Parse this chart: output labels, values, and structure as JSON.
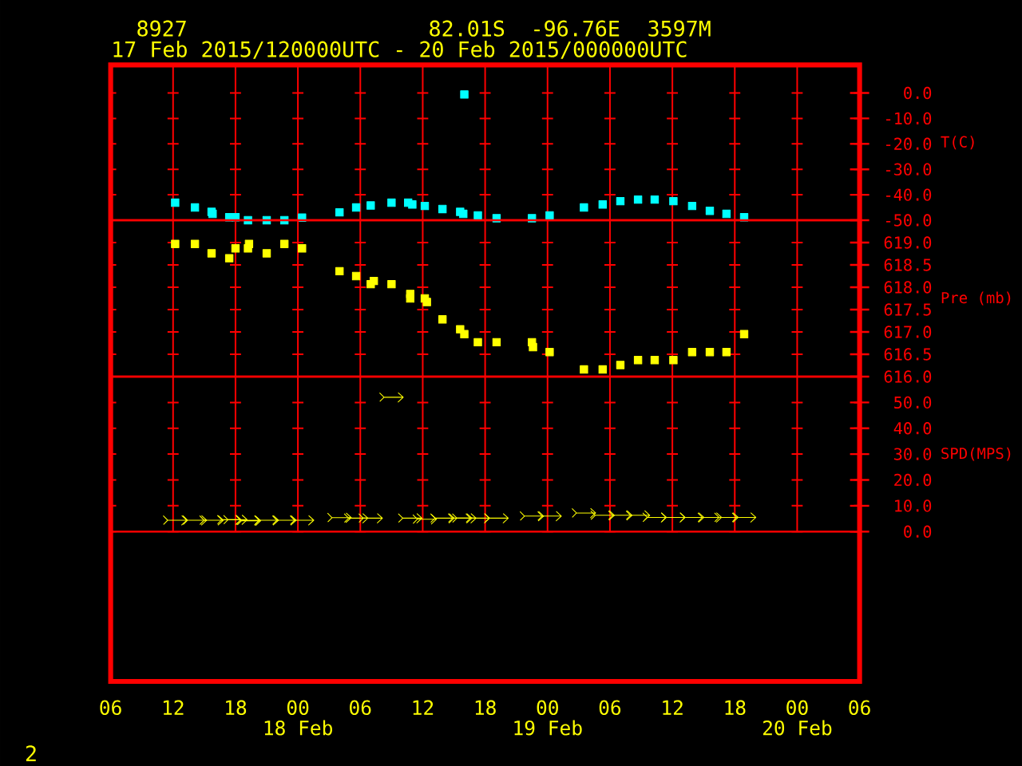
{
  "chart_data": [
    {
      "type": "scatter",
      "title": "8927",
      "subtitle": "17 Feb 2015/120000UTC - 20 Feb 2015/000000UTC",
      "annotations": [
        "82.01S",
        "-96.76E",
        "3597M",
        "2"
      ],
      "ylabel": "T(C)",
      "color": "#00ffff",
      "marker": "square",
      "grid": true,
      "tick_labels": "y",
      "xlim": [
        "2015-02-17T06:00",
        "2015-02-20T06:00"
      ],
      "xticks": [
        {
          "value": "2015-02-17T06:00",
          "label": null
        },
        {
          "value": "2015-02-17T12:00",
          "label": null
        },
        {
          "value": "2015-02-17T18:00",
          "label": null
        },
        {
          "value": "2015-02-18T00:00",
          "label": null
        },
        {
          "value": "2015-02-18T06:00",
          "label": null
        },
        {
          "value": "2015-02-18T12:00",
          "label": null
        },
        {
          "value": "2015-02-18T18:00",
          "label": null
        },
        {
          "value": "2015-02-19T00:00",
          "label": null
        },
        {
          "value": "2015-02-19T06:00",
          "label": null
        },
        {
          "value": "2015-02-19T12:00",
          "label": null
        },
        {
          "value": "2015-02-19T18:00",
          "label": null
        },
        {
          "value": "2015-02-20T00:00",
          "label": null
        },
        {
          "value": "2015-02-20T06:00",
          "label": null
        }
      ],
      "ylim": [
        -50,
        11
      ],
      "yticks": [
        {
          "value": -50,
          "label": "-50.0"
        },
        {
          "value": -40,
          "label": "-40.0"
        },
        {
          "value": -30,
          "label": "-30.0"
        },
        {
          "value": -20,
          "label": "-20.0"
        },
        {
          "value": -10,
          "label": "-10.0"
        },
        {
          "value": 0,
          "label": "0.0"
        }
      ],
      "x": [
        "2015-02-17T12:12",
        "2015-02-17T14:06",
        "2015-02-17T15:42",
        "2015-02-17T15:48",
        "2015-02-17T17:24",
        "2015-02-17T18:00",
        "2015-02-17T19:12",
        "2015-02-17T21:00",
        "2015-02-17T22:42",
        "2015-02-18T00:24",
        "2015-02-18T04:00",
        "2015-02-18T05:36",
        "2015-02-18T07:00",
        "2015-02-18T09:00",
        "2015-02-18T10:36",
        "2015-02-18T11:00",
        "2015-02-18T12:12",
        "2015-02-18T13:54",
        "2015-02-18T15:36",
        "2015-02-18T15:54",
        "2015-02-18T16:00",
        "2015-02-18T17:18",
        "2015-02-18T19:06",
        "2015-02-18T22:30",
        "2015-02-19T00:12",
        "2015-02-19T03:30",
        "2015-02-19T05:18",
        "2015-02-19T07:00",
        "2015-02-19T08:42",
        "2015-02-19T10:18",
        "2015-02-19T12:06",
        "2015-02-19T13:54",
        "2015-02-19T15:36",
        "2015-02-19T17:12",
        "2015-02-19T18:54"
      ],
      "values": [
        -43.1,
        -45.0,
        -46.7,
        -47.5,
        -48.8,
        -48.8,
        -50.0,
        -50.0,
        -50.0,
        -49.0,
        -46.9,
        -45.0,
        -44.2,
        -43.1,
        -43.1,
        -43.8,
        -44.4,
        -45.6,
        -46.7,
        -47.5,
        -0.6,
        -48.1,
        -49.2,
        -49.2,
        -48.1,
        -45.0,
        -43.8,
        -42.5,
        -41.9,
        -41.9,
        -42.5,
        -44.4,
        -46.3,
        -47.5,
        -48.8
      ]
    },
    {
      "type": "scatter",
      "ylabel": "Pre (mb)",
      "color": "#ffff00",
      "marker": "square",
      "grid": true,
      "tick_labels": "y",
      "xlim": [
        "2015-02-17T06:00",
        "2015-02-20T06:00"
      ],
      "xticks": [
        {
          "value": "2015-02-17T06:00",
          "label": null
        },
        {
          "value": "2015-02-17T12:00",
          "label": null
        },
        {
          "value": "2015-02-17T18:00",
          "label": null
        },
        {
          "value": "2015-02-18T00:00",
          "label": null
        },
        {
          "value": "2015-02-18T06:00",
          "label": null
        },
        {
          "value": "2015-02-18T12:00",
          "label": null
        },
        {
          "value": "2015-02-18T18:00",
          "label": null
        },
        {
          "value": "2015-02-19T00:00",
          "label": null
        },
        {
          "value": "2015-02-19T06:00",
          "label": null
        },
        {
          "value": "2015-02-19T12:00",
          "label": null
        },
        {
          "value": "2015-02-19T18:00",
          "label": null
        },
        {
          "value": "2015-02-20T00:00",
          "label": null
        },
        {
          "value": "2015-02-20T06:00",
          "label": null
        }
      ],
      "ylim": [
        616,
        619.5
      ],
      "yticks": [
        {
          "value": 616,
          "label": "616.0"
        },
        {
          "value": 616.5,
          "label": "616.5"
        },
        {
          "value": 617,
          "label": "617.0"
        },
        {
          "value": 617.5,
          "label": "617.5"
        },
        {
          "value": 618,
          "label": "618.0"
        },
        {
          "value": 618.5,
          "label": "618.5"
        },
        {
          "value": 619,
          "label": "619.0"
        }
      ],
      "x": [
        "2015-02-17T12:12",
        "2015-02-17T14:06",
        "2015-02-17T15:42",
        "2015-02-17T17:24",
        "2015-02-17T18:00",
        "2015-02-17T19:12",
        "2015-02-17T19:18",
        "2015-02-17T21:00",
        "2015-02-17T22:42",
        "2015-02-18T00:24",
        "2015-02-18T04:00",
        "2015-02-18T05:36",
        "2015-02-18T07:00",
        "2015-02-18T07:18",
        "2015-02-18T09:00",
        "2015-02-18T10:48",
        "2015-02-18T10:48",
        "2015-02-18T12:12",
        "2015-02-18T12:24",
        "2015-02-18T13:54",
        "2015-02-18T15:36",
        "2015-02-18T16:00",
        "2015-02-18T17:18",
        "2015-02-18T19:06",
        "2015-02-18T22:30",
        "2015-02-18T22:36",
        "2015-02-19T00:12",
        "2015-02-19T03:30",
        "2015-02-19T05:18",
        "2015-02-19T07:00",
        "2015-02-19T08:42",
        "2015-02-19T10:18",
        "2015-02-19T12:06",
        "2015-02-19T13:54",
        "2015-02-19T15:36",
        "2015-02-19T17:12",
        "2015-02-19T18:54"
      ],
      "values": [
        618.97,
        618.97,
        618.76,
        618.65,
        618.87,
        618.87,
        618.97,
        618.76,
        618.97,
        618.87,
        618.36,
        618.25,
        618.07,
        618.14,
        618.07,
        617.85,
        617.75,
        617.75,
        617.67,
        617.28,
        617.06,
        616.95,
        616.77,
        616.77,
        616.77,
        616.66,
        616.55,
        616.16,
        616.16,
        616.26,
        616.37,
        616.37,
        616.37,
        616.55,
        616.55,
        616.55,
        616.95
      ]
    },
    {
      "type": "scatter",
      "ylabel": "SPD(MPS)",
      "color": "#ffff00",
      "grid": true,
      "xlim": [
        "2015-02-17T06:00",
        "2015-02-20T06:00"
      ],
      "xticks": [
        {
          "value": "2015-02-17T06:00",
          "label": "06"
        },
        {
          "value": "2015-02-17T12:00",
          "label": "12"
        },
        {
          "value": "2015-02-17T18:00",
          "label": "18"
        },
        {
          "value": "2015-02-18T00:00",
          "label": "00"
        },
        {
          "value": "2015-02-18T06:00",
          "label": "06"
        },
        {
          "value": "2015-02-18T12:00",
          "label": "12"
        },
        {
          "value": "2015-02-18T18:00",
          "label": "18"
        },
        {
          "value": "2015-02-19T00:00",
          "label": "00"
        },
        {
          "value": "2015-02-19T06:00",
          "label": "06"
        },
        {
          "value": "2015-02-19T12:00",
          "label": "12"
        },
        {
          "value": "2015-02-19T18:00",
          "label": "18"
        },
        {
          "value": "2015-02-20T00:00",
          "label": "00"
        },
        {
          "value": "2015-02-20T06:00",
          "label": "06"
        }
      ],
      "x2lim": [
        "2015-02-17T06:00",
        "2015-02-20T06:00"
      ],
      "x2ticks": [
        {
          "value": "2015-02-18T00:00",
          "label": "18 Feb"
        },
        {
          "value": "2015-02-19T00:00",
          "label": "19 Feb"
        },
        {
          "value": "2015-02-20T00:00",
          "label": "20 Feb"
        }
      ],
      "ylim": [
        -58,
        60
      ],
      "yticks": [
        {
          "value": 0,
          "label": "0.0"
        },
        {
          "value": 10,
          "label": "10.0"
        },
        {
          "value": 20,
          "label": "20.0"
        },
        {
          "value": 30,
          "label": "30.0"
        },
        {
          "value": 40,
          "label": "40.0"
        },
        {
          "value": 50,
          "label": "50.0"
        }
      ],
      "ref_lines": [
        {
          "axis": "y",
          "value": 0,
          "color": "#ff0000"
        }
      ],
      "x": [
        "2015-02-17T12:12",
        "2015-02-17T14:06",
        "2015-02-17T15:42",
        "2015-02-17T17:24",
        "2015-02-17T18:00",
        "2015-02-17T19:12",
        "2015-02-17T19:18",
        "2015-02-17T21:00",
        "2015-02-17T22:42",
        "2015-02-18T00:24",
        "2015-02-18T04:00",
        "2015-02-18T05:36",
        "2015-02-18T07:00",
        "2015-02-18T09:00",
        "2015-02-18T10:48",
        "2015-02-18T12:12",
        "2015-02-18T13:54",
        "2015-02-18T15:36",
        "2015-02-18T16:00",
        "2015-02-18T17:18",
        "2015-02-18T19:06",
        "2015-02-18T22:30",
        "2015-02-19T00:12",
        "2015-02-19T03:30",
        "2015-02-19T05:18",
        "2015-02-19T07:00",
        "2015-02-19T08:42",
        "2015-02-19T10:18",
        "2015-02-19T12:06",
        "2015-02-19T13:54",
        "2015-02-19T15:36",
        "2015-02-19T17:12",
        "2015-02-19T18:54"
      ],
      "values": [
        4.4,
        4.4,
        4.4,
        4.6,
        4.6,
        4.4,
        4.2,
        4.4,
        4.4,
        4.4,
        5.4,
        5.2,
        5.2,
        52.0,
        5.2,
        4.8,
        5.2,
        5.2,
        5.2,
        5.2,
        5.2,
        6.0,
        6.0,
        7.2,
        6.3,
        6.3,
        6.3,
        5.5,
        5.5,
        5.5,
        5.5,
        5.5,
        5.5
      ]
    }
  ]
}
